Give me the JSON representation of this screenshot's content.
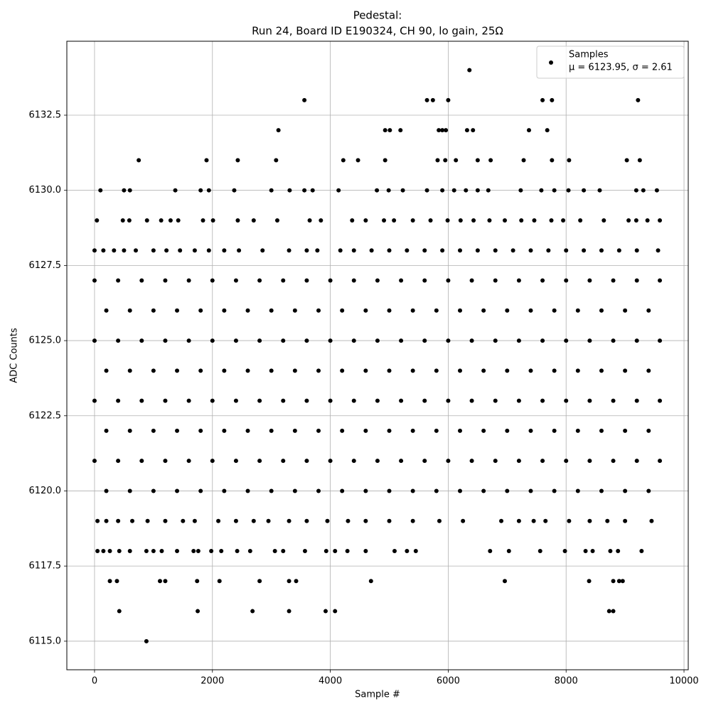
{
  "chart_data": {
    "type": "scatter",
    "title": "Pedestal:",
    "subtitle": "Run 24, Board ID E190324, CH 90, lo gain, 25Ω",
    "x_label": "Sample #",
    "y_label": "ADC Counts",
    "legend_note": "μ = 6123.95, σ = 2.61",
    "legend_position": "upper right",
    "grid": true,
    "xlim": [
      -470,
      10072
    ],
    "ylim": [
      6114.05,
      6134.96
    ],
    "xticks": [
      0,
      2000,
      4000,
      6000,
      8000,
      10000
    ],
    "yticks": [
      {
        "value": 6115,
        "label": "6115.0"
      },
      {
        "value": 6117.5,
        "label": "6117.5"
      },
      {
        "value": 6120,
        "label": "6120.0"
      },
      {
        "value": 6122.5,
        "label": "6122.5"
      },
      {
        "value": 6125,
        "label": "6125.0"
      },
      {
        "value": 6127.5,
        "label": "6127.5"
      },
      {
        "value": 6130,
        "label": "6130.0"
      },
      {
        "value": 6132.5,
        "label": "6132.5"
      }
    ],
    "series": [
      {
        "name": "Samples",
        "color": "#000000",
        "x": [
          6360,
          3560,
          5640,
          5740,
          6000,
          7600,
          7760,
          9220,
          3120,
          4930,
          5010,
          5190,
          5840,
          5900,
          5960,
          6320,
          6420,
          7370,
          7680,
          750,
          1900,
          2430,
          3080,
          4220,
          4470,
          4930,
          5820,
          5950,
          6130,
          6500,
          6720,
          7280,
          7760,
          8050,
          9030,
          9250,
          100,
          500,
          600,
          1370,
          1800,
          1940,
          2370,
          3000,
          3310,
          3560,
          3700,
          4140,
          4790,
          4990,
          5230,
          5640,
          5900,
          6100,
          6300,
          6500,
          6680,
          7230,
          7580,
          7800,
          8040,
          8300,
          8570,
          9190,
          9310,
          9540,
          40,
          480,
          590,
          890,
          1130,
          1290,
          1420,
          1840,
          2010,
          2430,
          2700,
          3100,
          3650,
          3840,
          4370,
          4600,
          4910,
          5080,
          5400,
          5700,
          5990,
          6210,
          6430,
          6700,
          6960,
          7240,
          7460,
          7750,
          7950,
          8240,
          8640,
          9060,
          9190,
          9380,
          9590,
          0,
          150,
          330,
          500,
          700,
          1000,
          1220,
          1450,
          1700,
          1940,
          2200,
          2450,
          2850,
          3300,
          3600,
          3780,
          4170,
          4400,
          4700,
          5000,
          5300,
          5600,
          5900,
          6200,
          6500,
          6800,
          7100,
          7400,
          7700,
          8000,
          8300,
          8600,
          8900,
          9200,
          9560,
          0,
          400,
          800,
          1200,
          1600,
          2000,
          2400,
          2800,
          3200,
          3600,
          4000,
          4400,
          4800,
          5200,
          5600,
          6000,
          6400,
          6800,
          7200,
          7600,
          8000,
          8400,
          8800,
          9200,
          9590,
          200,
          600,
          1000,
          1400,
          1800,
          2200,
          2600,
          3000,
          3400,
          3800,
          4200,
          4600,
          5000,
          5400,
          5800,
          6200,
          6600,
          7000,
          7400,
          7800,
          8200,
          8600,
          9000,
          9400,
          0,
          400,
          800,
          1200,
          1600,
          2000,
          2400,
          2800,
          3200,
          3600,
          4000,
          4400,
          4800,
          5200,
          5600,
          6000,
          6400,
          6800,
          7200,
          7600,
          8000,
          8400,
          8800,
          9200,
          9590,
          200,
          600,
          1000,
          1400,
          1800,
          2200,
          2600,
          3000,
          3400,
          3800,
          4200,
          4600,
          5000,
          5400,
          5800,
          6200,
          6600,
          7000,
          7400,
          7800,
          8200,
          8600,
          9000,
          9400,
          0,
          400,
          800,
          1200,
          1600,
          2000,
          2400,
          2800,
          3200,
          3600,
          4000,
          4400,
          4800,
          5200,
          5600,
          6000,
          6400,
          6800,
          7200,
          7600,
          8000,
          8400,
          8800,
          9200,
          9590,
          200,
          600,
          1000,
          1400,
          1800,
          2200,
          2600,
          3000,
          3400,
          3800,
          4200,
          4600,
          5000,
          5400,
          5800,
          6200,
          6600,
          7000,
          7400,
          7800,
          8200,
          8600,
          9000,
          9400,
          0,
          400,
          800,
          1200,
          1600,
          2000,
          2400,
          2800,
          3200,
          3600,
          4000,
          4400,
          4800,
          5200,
          5600,
          6000,
          6400,
          6800,
          7200,
          7600,
          8000,
          8400,
          8800,
          9200,
          9590,
          200,
          600,
          1000,
          1400,
          1800,
          2200,
          2600,
          3000,
          3400,
          3800,
          4200,
          4600,
          5000,
          5400,
          5800,
          6200,
          6600,
          7000,
          7400,
          7800,
          8200,
          8600,
          9000,
          9400,
          50,
          200,
          400,
          640,
          900,
          1200,
          1500,
          1700,
          2100,
          2400,
          2700,
          2950,
          3300,
          3600,
          3950,
          4300,
          4600,
          5000,
          5400,
          5850,
          6250,
          6900,
          7200,
          7450,
          7650,
          8050,
          8400,
          8700,
          9000,
          9450,
          50,
          150,
          260,
          420,
          600,
          880,
          1000,
          1140,
          1400,
          1680,
          1760,
          1980,
          2150,
          2420,
          2640,
          3060,
          3200,
          3570,
          3930,
          4080,
          4290,
          4600,
          5090,
          5300,
          5450,
          6710,
          7030,
          7560,
          7980,
          8330,
          8450,
          8750,
          8880,
          9280,
          260,
          380,
          1110,
          1200,
          1740,
          2120,
          2800,
          3300,
          3420,
          4690,
          6960,
          8390,
          8800,
          8900,
          8960,
          420,
          1750,
          2680,
          3300,
          3920,
          4080,
          8730,
          8800,
          880
        ],
        "values": [
          6134,
          6133,
          6133,
          6133,
          6133,
          6133,
          6133,
          6133,
          6132,
          6132,
          6132,
          6132,
          6132,
          6132,
          6132,
          6132,
          6132,
          6132,
          6132,
          6131,
          6131,
          6131,
          6131,
          6131,
          6131,
          6131,
          6131,
          6131,
          6131,
          6131,
          6131,
          6131,
          6131,
          6131,
          6131,
          6131,
          6130,
          6130,
          6130,
          6130,
          6130,
          6130,
          6130,
          6130,
          6130,
          6130,
          6130,
          6130,
          6130,
          6130,
          6130,
          6130,
          6130,
          6130,
          6130,
          6130,
          6130,
          6130,
          6130,
          6130,
          6130,
          6130,
          6130,
          6130,
          6130,
          6130,
          6129,
          6129,
          6129,
          6129,
          6129,
          6129,
          6129,
          6129,
          6129,
          6129,
          6129,
          6129,
          6129,
          6129,
          6129,
          6129,
          6129,
          6129,
          6129,
          6129,
          6129,
          6129,
          6129,
          6129,
          6129,
          6129,
          6129,
          6129,
          6129,
          6129,
          6129,
          6129,
          6129,
          6129,
          6129,
          6128,
          6128,
          6128,
          6128,
          6128,
          6128,
          6128,
          6128,
          6128,
          6128,
          6128,
          6128,
          6128,
          6128,
          6128,
          6128,
          6128,
          6128,
          6128,
          6128,
          6128,
          6128,
          6128,
          6128,
          6128,
          6128,
          6128,
          6128,
          6128,
          6128,
          6128,
          6128,
          6128,
          6128,
          6128,
          6127,
          6127,
          6127,
          6127,
          6127,
          6127,
          6127,
          6127,
          6127,
          6127,
          6127,
          6127,
          6127,
          6127,
          6127,
          6127,
          6127,
          6127,
          6127,
          6127,
          6127,
          6127,
          6127,
          6127,
          6127,
          6126,
          6126,
          6126,
          6126,
          6126,
          6126,
          6126,
          6126,
          6126,
          6126,
          6126,
          6126,
          6126,
          6126,
          6126,
          6126,
          6126,
          6126,
          6126,
          6126,
          6126,
          6126,
          6126,
          6126,
          6125,
          6125,
          6125,
          6125,
          6125,
          6125,
          6125,
          6125,
          6125,
          6125,
          6125,
          6125,
          6125,
          6125,
          6125,
          6125,
          6125,
          6125,
          6125,
          6125,
          6125,
          6125,
          6125,
          6125,
          6125,
          6124,
          6124,
          6124,
          6124,
          6124,
          6124,
          6124,
          6124,
          6124,
          6124,
          6124,
          6124,
          6124,
          6124,
          6124,
          6124,
          6124,
          6124,
          6124,
          6124,
          6124,
          6124,
          6124,
          6124,
          6123,
          6123,
          6123,
          6123,
          6123,
          6123,
          6123,
          6123,
          6123,
          6123,
          6123,
          6123,
          6123,
          6123,
          6123,
          6123,
          6123,
          6123,
          6123,
          6123,
          6123,
          6123,
          6123,
          6123,
          6123,
          6122,
          6122,
          6122,
          6122,
          6122,
          6122,
          6122,
          6122,
          6122,
          6122,
          6122,
          6122,
          6122,
          6122,
          6122,
          6122,
          6122,
          6122,
          6122,
          6122,
          6122,
          6122,
          6122,
          6122,
          6121,
          6121,
          6121,
          6121,
          6121,
          6121,
          6121,
          6121,
          6121,
          6121,
          6121,
          6121,
          6121,
          6121,
          6121,
          6121,
          6121,
          6121,
          6121,
          6121,
          6121,
          6121,
          6121,
          6121,
          6121,
          6120,
          6120,
          6120,
          6120,
          6120,
          6120,
          6120,
          6120,
          6120,
          6120,
          6120,
          6120,
          6120,
          6120,
          6120,
          6120,
          6120,
          6120,
          6120,
          6120,
          6120,
          6120,
          6120,
          6120,
          6119,
          6119,
          6119,
          6119,
          6119,
          6119,
          6119,
          6119,
          6119,
          6119,
          6119,
          6119,
          6119,
          6119,
          6119,
          6119,
          6119,
          6119,
          6119,
          6119,
          6119,
          6119,
          6119,
          6119,
          6119,
          6119,
          6119,
          6119,
          6119,
          6119,
          6118,
          6118,
          6118,
          6118,
          6118,
          6118,
          6118,
          6118,
          6118,
          6118,
          6118,
          6118,
          6118,
          6118,
          6118,
          6118,
          6118,
          6118,
          6118,
          6118,
          6118,
          6118,
          6118,
          6118,
          6118,
          6118,
          6118,
          6118,
          6118,
          6118,
          6118,
          6118,
          6118,
          6118,
          6117,
          6117,
          6117,
          6117,
          6117,
          6117,
          6117,
          6117,
          6117,
          6117,
          6117,
          6117,
          6117,
          6117,
          6117,
          6116,
          6116,
          6116,
          6116,
          6116,
          6116,
          6116,
          6116,
          6115
        ]
      }
    ]
  }
}
